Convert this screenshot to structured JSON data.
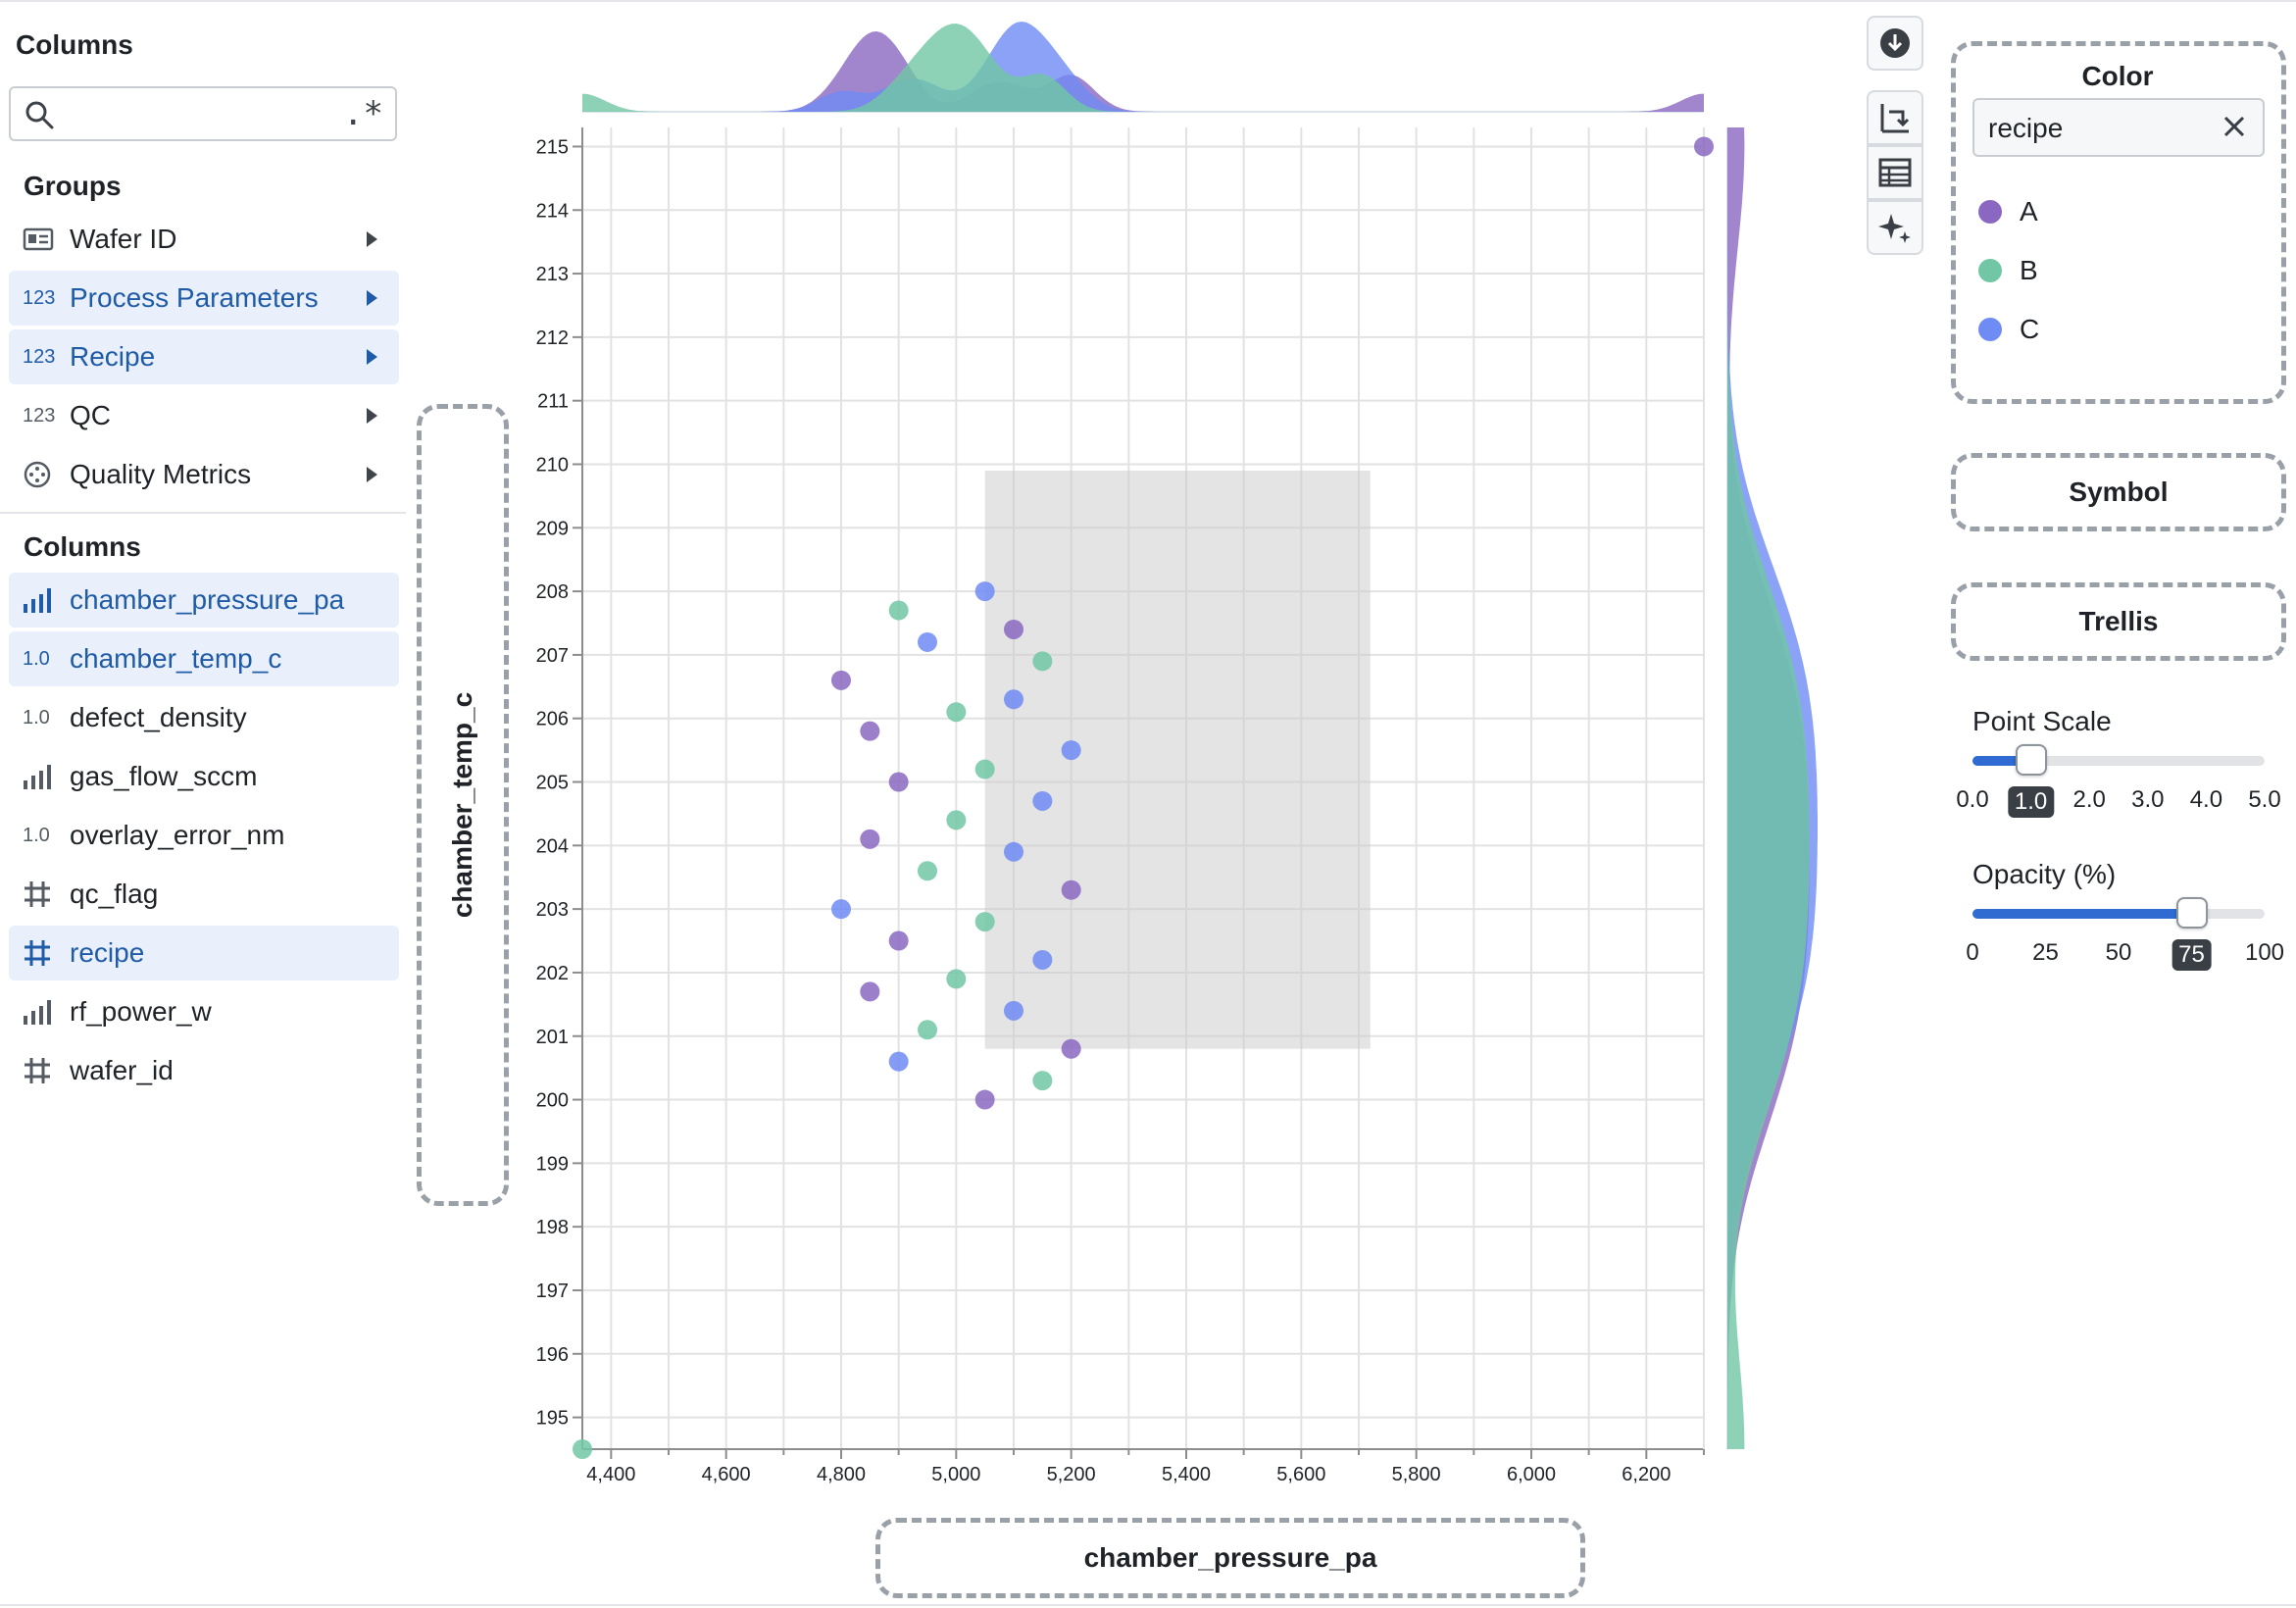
{
  "sidebar": {
    "title": "Columns",
    "search": {
      "value": "",
      "placeholder": "",
      "regex_label": ".*"
    },
    "groups_label": "Groups",
    "groups": [
      {
        "label": "Wafer ID",
        "icon": "id-card-icon",
        "selected": false
      },
      {
        "label": "Process Parameters",
        "icon": "123",
        "selected": true
      },
      {
        "label": "Recipe",
        "icon": "123",
        "selected": true
      },
      {
        "label": "QC",
        "icon": "123",
        "selected": false
      },
      {
        "label": "Quality Metrics",
        "icon": "crosshair-icon",
        "selected": false
      }
    ],
    "columns_label": "Columns",
    "columns": [
      {
        "label": "chamber_pressure_pa",
        "icon": "bars",
        "selected": true
      },
      {
        "label": "chamber_temp_c",
        "icon": "1.0",
        "selected": true
      },
      {
        "label": "defect_density",
        "icon": "1.0",
        "selected": false
      },
      {
        "label": "gas_flow_sccm",
        "icon": "bars",
        "selected": false
      },
      {
        "label": "overlay_error_nm",
        "icon": "1.0",
        "selected": false
      },
      {
        "label": "qc_flag",
        "icon": "grid",
        "selected": false
      },
      {
        "label": "recipe",
        "icon": "grid",
        "selected": true
      },
      {
        "label": "rf_power_w",
        "icon": "bars",
        "selected": false
      },
      {
        "label": "wafer_id",
        "icon": "grid",
        "selected": false
      }
    ]
  },
  "encodings": {
    "y_axis": "chamber_temp_c",
    "x_axis": "chamber_pressure_pa",
    "color_title": "Color",
    "color_field": "recipe",
    "symbol": "Symbol",
    "trellis": "Trellis"
  },
  "legend": [
    {
      "name": "A",
      "color": "#8a68c1"
    },
    {
      "name": "B",
      "color": "#71c7a5"
    },
    {
      "name": "C",
      "color": "#6f8bf4"
    }
  ],
  "sliders": {
    "point_scale": {
      "title": "Point Scale",
      "ticks": [
        "0.0",
        "1.0",
        "2.0",
        "3.0",
        "4.0",
        "5.0"
      ],
      "value": 1.0,
      "min": 0,
      "max": 5
    },
    "opacity": {
      "title": "Opacity (%)",
      "ticks": [
        "0",
        "25",
        "50",
        "75",
        "100"
      ],
      "value": 75,
      "min": 0,
      "max": 100
    }
  },
  "toolbar": [
    {
      "name": "download-icon"
    },
    {
      "name": "swap-axes-icon"
    },
    {
      "name": "table-icon"
    },
    {
      "name": "sparkle-icon"
    }
  ],
  "chart_data": {
    "type": "scatter",
    "xlabel": "chamber_pressure_pa",
    "ylabel": "chamber_temp_c",
    "xlim": [
      4350,
      6300
    ],
    "ylim": [
      194.5,
      215.3
    ],
    "x_ticks": [
      4400,
      4600,
      4800,
      5000,
      5200,
      5400,
      5600,
      5800,
      6000,
      6200
    ],
    "x_tick_labels": [
      "4,400",
      "4,600",
      "4,800",
      "5,000",
      "5,200",
      "5,400",
      "5,600",
      "5,800",
      "6,000",
      "6,200"
    ],
    "y_ticks": [
      195,
      196,
      197,
      198,
      199,
      200,
      201,
      202,
      203,
      204,
      205,
      206,
      207,
      208,
      209,
      210,
      211,
      212,
      213,
      214,
      215
    ],
    "y_tick_labels": [
      "195",
      "196",
      "197",
      "198",
      "199",
      "200",
      "201",
      "202",
      "203",
      "204",
      "205",
      "206",
      "207",
      "208",
      "209",
      "210",
      "211",
      "212",
      "213",
      "214",
      "215"
    ],
    "grid": true,
    "marginal_density": true,
    "brush_selection": {
      "x": [
        5050,
        5720
      ],
      "y": [
        200.8,
        209.9
      ]
    },
    "series": [
      {
        "name": "A",
        "color": "#8a68c1",
        "x": [
          5100,
          4800,
          4850,
          4900,
          4850,
          5200,
          4900,
          4850,
          5200,
          5050,
          6300
        ],
        "y": [
          207.4,
          206.6,
          205.8,
          205.0,
          204.1,
          203.3,
          202.5,
          201.7,
          200.8,
          200.0,
          215.0
        ]
      },
      {
        "name": "B",
        "color": "#71c7a5",
        "x": [
          4900,
          5150,
          5000,
          5050,
          5000,
          4950,
          5050,
          5000,
          4950,
          5150,
          4350
        ],
        "y": [
          207.7,
          206.9,
          206.1,
          205.2,
          204.4,
          203.6,
          202.8,
          201.9,
          201.1,
          200.3,
          194.5
        ]
      },
      {
        "name": "C",
        "color": "#6f8bf4",
        "x": [
          5050,
          4950,
          5100,
          5200,
          5150,
          5100,
          4800,
          5150,
          5100,
          4900
        ],
        "y": [
          208.0,
          207.2,
          206.3,
          205.5,
          204.7,
          203.9,
          203.0,
          202.2,
          201.4,
          200.6
        ]
      }
    ]
  }
}
